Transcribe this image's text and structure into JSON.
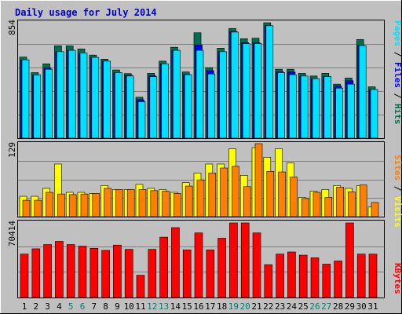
{
  "title": "Daily usage for July 2014",
  "colors": {
    "background": "#c0c0c0",
    "plot_bg": "#c0c0c0",
    "grid": "#808080",
    "title_text": "#0000c0",
    "hits": "#006f4f",
    "files": "#0000ff",
    "pages": "#00e0ff",
    "visits": "#ffff00",
    "sites": "#ff8000",
    "kbytes": "#ff0000",
    "weekend_day": "#00806f",
    "weekday": "#000000"
  },
  "chart_data": [
    {
      "type": "bar",
      "panel": "hits-files-pages",
      "axis_max_label": "854",
      "ylim": [
        0,
        854
      ],
      "legend": [
        {
          "label": "Pages",
          "color": "#00e0ff"
        },
        {
          "label": "Files",
          "color": "#0000ff"
        },
        {
          "label": "Hits",
          "color": "#006f4f"
        }
      ],
      "legend_separator": " / ",
      "categories": [
        "1",
        "2",
        "3",
        "4",
        "5",
        "6",
        "7",
        "8",
        "9",
        "10",
        "11",
        "12",
        "13",
        "14",
        "15",
        "16",
        "17",
        "18",
        "19",
        "20",
        "21",
        "22",
        "23",
        "24",
        "25",
        "26",
        "27",
        "28",
        "29",
        "30",
        "31"
      ],
      "series": [
        {
          "name": "Hits",
          "color": "#006f4f",
          "values": [
            600,
            485,
            550,
            684,
            683,
            660,
            615,
            585,
            505,
            478,
            303,
            480,
            570,
            673,
            490,
            780,
            522,
            666,
            812,
            736,
            740,
            854,
            510,
            510,
            480,
            460,
            480,
            400,
            445,
            730,
            380
          ]
        },
        {
          "name": "Files",
          "color": "#0000ff",
          "values": [
            580,
            468,
            520,
            640,
            650,
            630,
            598,
            570,
            485,
            465,
            285,
            462,
            550,
            650,
            470,
            690,
            500,
            640,
            790,
            706,
            705,
            832,
            492,
            490,
            460,
            440,
            455,
            385,
            425,
            685,
            360
          ]
        },
        {
          "name": "Pages",
          "color": "#00e0ff",
          "values": [
            580,
            468,
            510,
            640,
            650,
            630,
            598,
            570,
            485,
            460,
            270,
            455,
            550,
            650,
            470,
            650,
            475,
            640,
            785,
            700,
            700,
            832,
            485,
            470,
            460,
            440,
            455,
            370,
            400,
            685,
            360
          ]
        }
      ]
    },
    {
      "type": "bar",
      "panel": "visits-sites",
      "axis_max_label": "129",
      "ylim": [
        0,
        129
      ],
      "legend": [
        {
          "label": "Sites",
          "color": "#ff8000"
        },
        {
          "label": "Visits",
          "color": "#ffff00"
        }
      ],
      "legend_separator": " / ",
      "categories": [
        "1",
        "2",
        "3",
        "4",
        "5",
        "6",
        "7",
        "8",
        "9",
        "10",
        "11",
        "12",
        "13",
        "14",
        "15",
        "16",
        "17",
        "18",
        "19",
        "20",
        "21",
        "22",
        "23",
        "24",
        "25",
        "26",
        "27",
        "28",
        "29",
        "30",
        "31"
      ],
      "series": [
        {
          "name": "Visits",
          "color": "#ffff00",
          "values": [
            36,
            36,
            50,
            93,
            43,
            43,
            41,
            55,
            48,
            48,
            57,
            50,
            48,
            43,
            60,
            77,
            93,
            93,
            120,
            73,
            122,
            105,
            120,
            95,
            34,
            45,
            48,
            55,
            50,
            55,
            17
          ]
        },
        {
          "name": "Sites",
          "color": "#ff8000",
          "values": [
            29,
            29,
            43,
            40,
            39,
            40,
            41,
            50,
            48,
            48,
            48,
            46,
            45,
            41,
            54,
            65,
            77,
            86,
            89,
            53,
            129,
            80,
            79,
            70,
            32,
            43,
            34,
            52,
            44,
            56,
            25
          ]
        }
      ]
    },
    {
      "type": "bar",
      "panel": "kbytes",
      "axis_max_label": "70414",
      "ylim": [
        0,
        70414
      ],
      "legend": [
        {
          "label": "KBytes",
          "color": "#ff0000"
        }
      ],
      "categories": [
        "1",
        "2",
        "3",
        "4",
        "5",
        "6",
        "7",
        "8",
        "9",
        "10",
        "11",
        "12",
        "13",
        "14",
        "15",
        "16",
        "17",
        "18",
        "19",
        "20",
        "21",
        "22",
        "23",
        "24",
        "25",
        "26",
        "27",
        "28",
        "29",
        "30",
        "31"
      ],
      "series": [
        {
          "name": "KBytes",
          "color": "#ff0000",
          "values": [
            41000,
            46000,
            50000,
            53000,
            50000,
            48500,
            46500,
            44500,
            49500,
            45500,
            21000,
            45500,
            57000,
            66000,
            45000,
            61000,
            45000,
            56000,
            70414,
            70414,
            61000,
            31000,
            41000,
            43000,
            40000,
            37500,
            31500,
            34500,
            70414,
            41000,
            41000
          ]
        }
      ]
    }
  ]
}
